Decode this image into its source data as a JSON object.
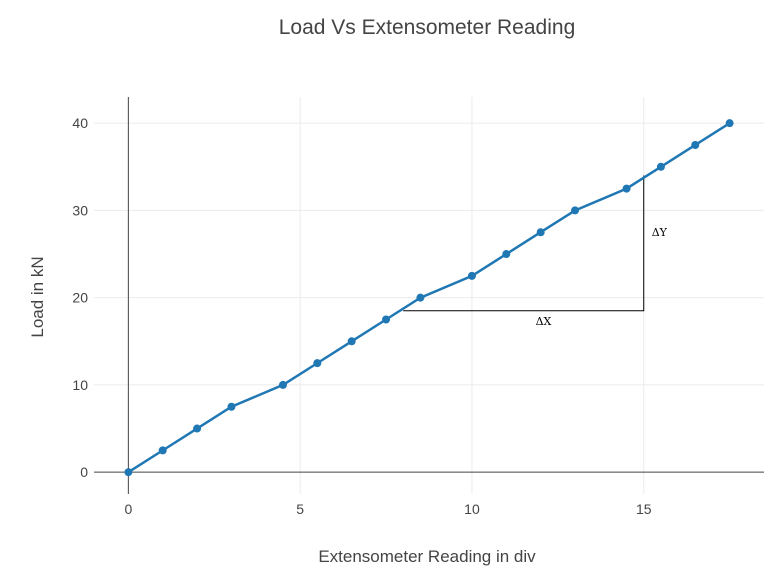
{
  "chart_data": {
    "type": "line",
    "title": "Load Vs Extensometer Reading",
    "xlabel": "Extensometer Reading in div",
    "ylabel": "Load in kN",
    "xlim": [
      -1,
      18.5
    ],
    "ylim": [
      -2.5,
      43
    ],
    "xticks": [
      0,
      5,
      10,
      15
    ],
    "yticks": [
      0,
      10,
      20,
      30,
      40
    ],
    "grid": true,
    "series": [
      {
        "color": "#1f77b4",
        "x": [
          0,
          1,
          2,
          3,
          4.5,
          5.5,
          6.5,
          7.5,
          8.5,
          10,
          11,
          12,
          13,
          14.5,
          15.5,
          16.5,
          17.5
        ],
        "y": [
          0,
          2.5,
          5,
          7.5,
          10,
          12.5,
          15,
          17.5,
          20,
          22.5,
          25,
          27.5,
          30,
          32.5,
          35,
          37.5,
          40
        ]
      }
    ],
    "annotations": {
      "slope_triangle": {
        "x0": 8,
        "x1": 15,
        "y0": 18.5,
        "y1": 34
      },
      "dx_label": "ΔX",
      "dy_label": "ΔY"
    }
  }
}
